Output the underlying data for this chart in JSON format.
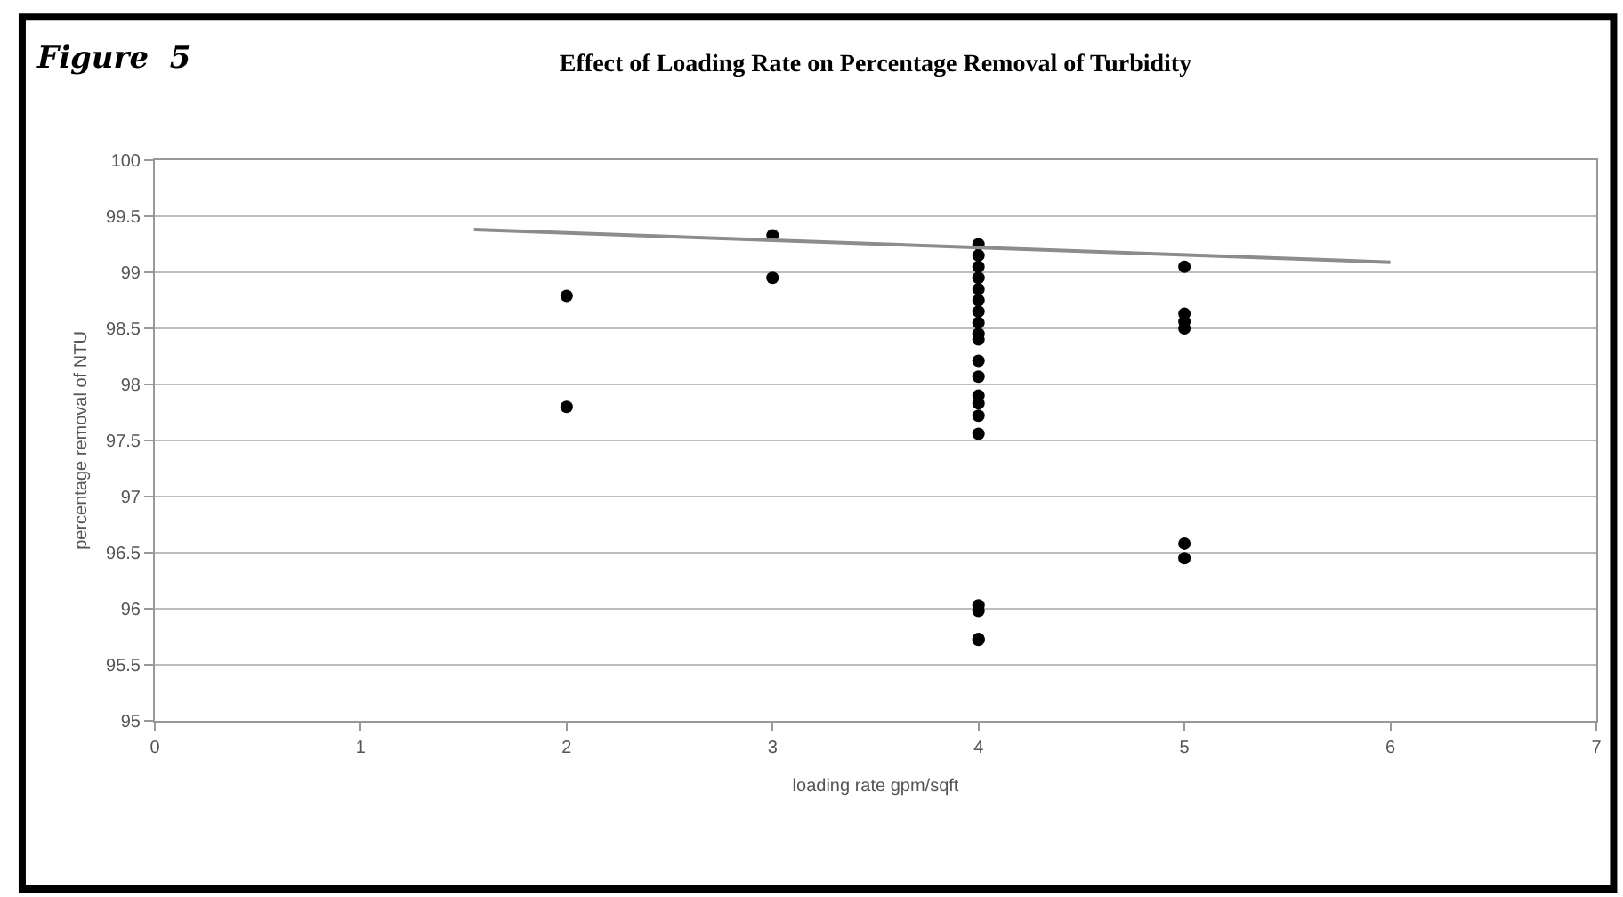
{
  "chart_data": {
    "type": "scatter",
    "title": "Effect of Loading Rate on Percentage Removal of Turbidity",
    "xlabel": "loading rate gpm/sqft",
    "ylabel": "percentage removal of NTU",
    "annotations": [
      "Figure  5"
    ],
    "series": [
      {
        "color": "#000000",
        "marker": "circle",
        "x": [
          2,
          2,
          3,
          3,
          4,
          4,
          4,
          4,
          4,
          4,
          4,
          4,
          4,
          4,
          4,
          4,
          4,
          4,
          4,
          4,
          4,
          4,
          4,
          4,
          5,
          5,
          5,
          5,
          5,
          5
        ],
        "values": [
          98.79,
          97.8,
          99.33,
          98.95,
          99.25,
          99.15,
          99.05,
          98.95,
          98.85,
          98.75,
          98.65,
          98.55,
          98.45,
          98.4,
          98.21,
          98.07,
          97.9,
          97.83,
          97.72,
          97.56,
          96.03,
          95.98,
          95.73,
          95.72,
          99.05,
          98.63,
          98.56,
          98.5,
          96.58,
          96.45
        ]
      },
      {
        "type": "line",
        "color": "#8c8c8c",
        "marker": "none",
        "x": [
          1.55,
          6.0
        ],
        "values": [
          99.38,
          99.09
        ]
      }
    ],
    "xlim": [
      0,
      7
    ],
    "xticks": [
      0,
      1,
      2,
      3,
      4,
      5,
      6,
      7
    ],
    "ylim": [
      95,
      100
    ],
    "yticks": [
      95,
      95.5,
      96,
      96.5,
      97,
      97.5,
      98,
      98.5,
      99,
      99.5,
      100
    ],
    "grid": "y"
  }
}
